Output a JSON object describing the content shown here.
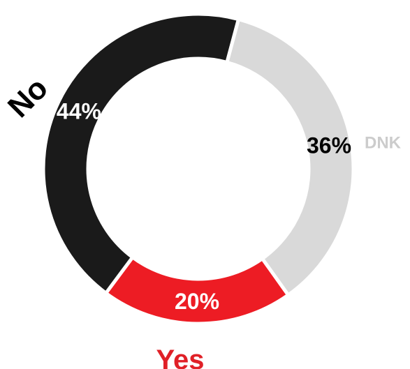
{
  "chart_data": {
    "type": "pie",
    "variant": "donut",
    "start_angle_deg": 15,
    "direction": "clockwise",
    "slices": [
      {
        "label": "DNK",
        "value": 36,
        "value_label": "36%",
        "color": "#d9d9d9",
        "value_label_color": "#000000",
        "label_color": "#cccccc"
      },
      {
        "label": "Yes",
        "value": 20,
        "value_label": "20%",
        "color": "#ed1c24",
        "value_label_color": "#ffffff",
        "label_color": "#e02027"
      },
      {
        "label": "No",
        "value": 44,
        "value_label": "44%",
        "color": "#1a1a1a",
        "value_label_color": "#ffffff",
        "label_color": "#000000"
      }
    ]
  }
}
